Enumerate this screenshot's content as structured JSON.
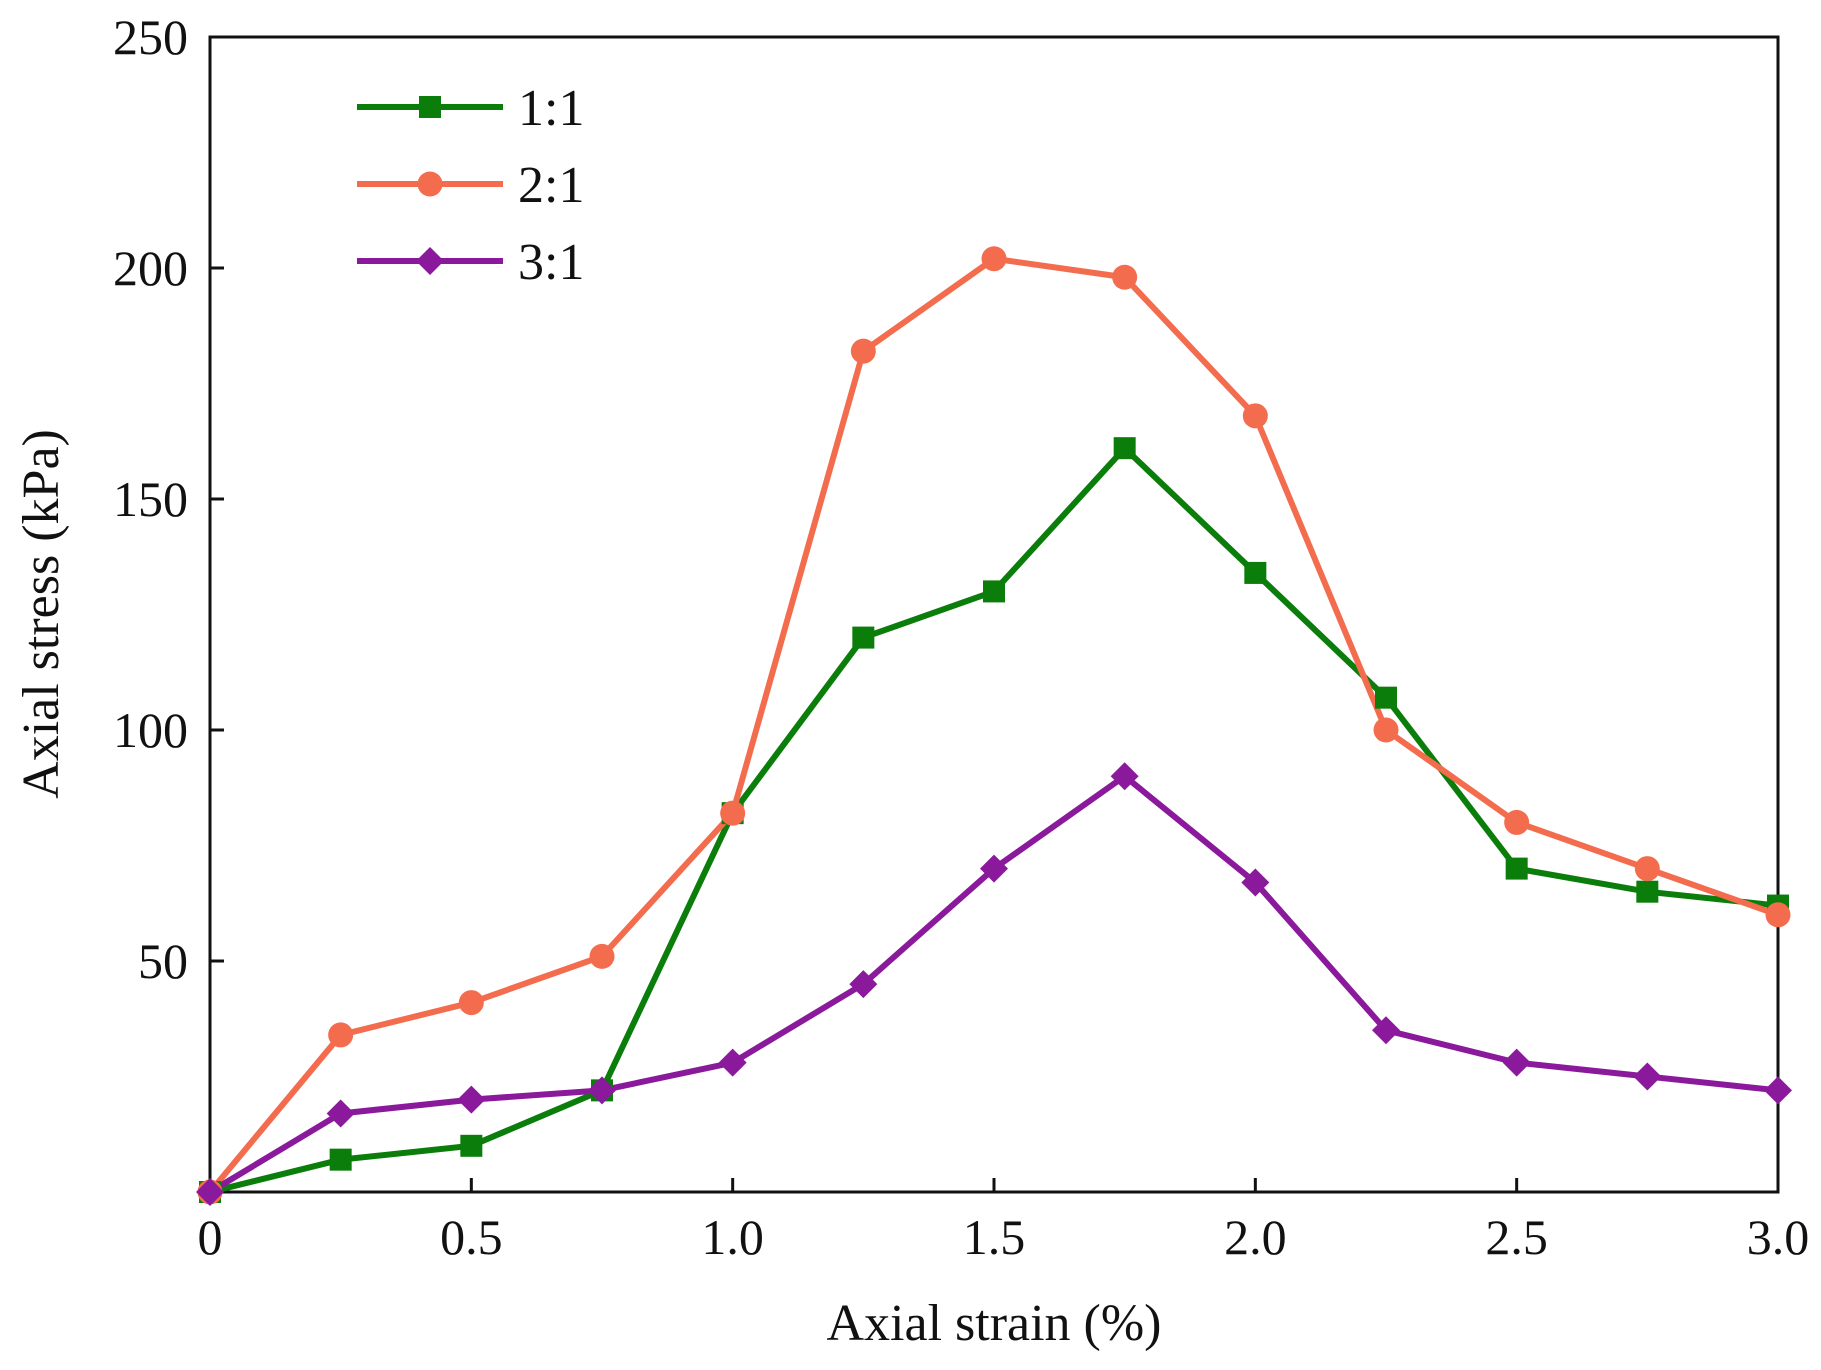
{
  "chart_data": {
    "type": "line",
    "title": "",
    "xlabel": "Axial strain (%)",
    "ylabel": "Axial stress (kPa)",
    "xlim": [
      0,
      3.0
    ],
    "ylim": [
      0,
      250
    ],
    "x_ticks": [
      0,
      0.5,
      1.0,
      1.5,
      2.0,
      2.5,
      3.0
    ],
    "x_tick_labels": [
      "0",
      "0.5",
      "1.0",
      "1.5",
      "2.0",
      "2.5",
      "3.0"
    ],
    "y_ticks": [
      50,
      100,
      150,
      200,
      250
    ],
    "y_tick_labels": [
      "50",
      "100",
      "150",
      "200",
      "250"
    ],
    "grid": false,
    "legend_position": "top-left",
    "x": [
      0,
      0.25,
      0.5,
      0.75,
      1.0,
      1.25,
      1.5,
      1.75,
      2.0,
      2.25,
      2.5,
      2.75,
      3.0
    ],
    "series": [
      {
        "name": "1:1",
        "color": "#0a7d0a",
        "marker": "square",
        "values": [
          0,
          7,
          10,
          22,
          82,
          120,
          130,
          161,
          134,
          107,
          70,
          65,
          62
        ]
      },
      {
        "name": "2:1",
        "color": "#f36c4e",
        "marker": "circle",
        "values": [
          0,
          34,
          41,
          51,
          82,
          182,
          202,
          198,
          168,
          100,
          80,
          70,
          60
        ]
      },
      {
        "name": "3:1",
        "color": "#8a1a9b",
        "marker": "diamond",
        "values": [
          0,
          17,
          20,
          22,
          28,
          45,
          70,
          90,
          67,
          35,
          28,
          25,
          22
        ]
      }
    ]
  }
}
